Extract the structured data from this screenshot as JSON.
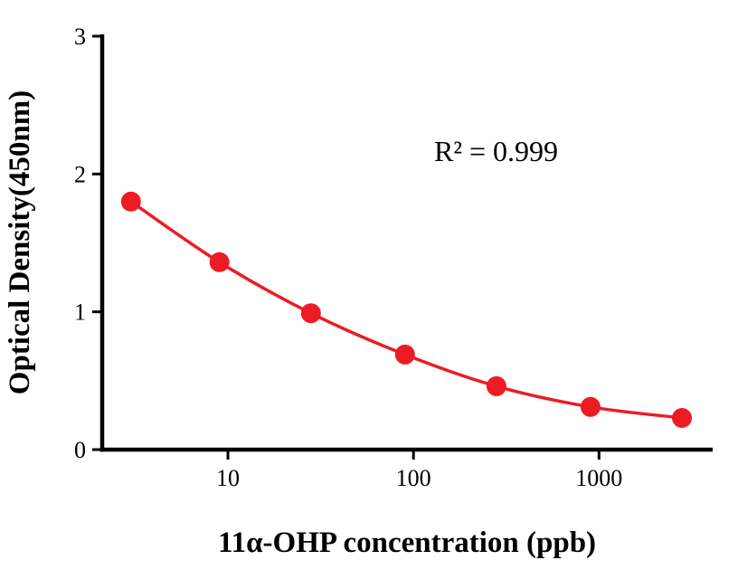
{
  "chart_data": {
    "type": "scatter",
    "title": "",
    "xlabel": "11α-OHP concentration (ppb)",
    "ylabel": "Optical Density(450nm)",
    "annotation": "R² = 0.999",
    "xscale": "log",
    "xlim": [
      2.1,
      4100
    ],
    "ylim": [
      0,
      3
    ],
    "x_ticks": [
      10,
      100,
      1000
    ],
    "y_ticks": [
      0,
      1,
      2,
      3
    ],
    "x": [
      3,
      9,
      28,
      90,
      280,
      900,
      2800
    ],
    "y": [
      1.8,
      1.36,
      0.99,
      0.69,
      0.46,
      0.31,
      0.23
    ],
    "grid": false,
    "legend": "none",
    "marker_color": "#ed1c24",
    "line_color": "#ed1c24",
    "axis_color": "#000000"
  }
}
